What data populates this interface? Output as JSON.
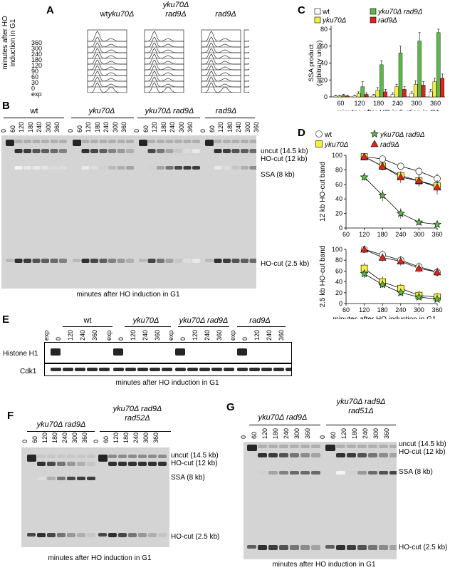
{
  "panels": {
    "A": {
      "letter": "A",
      "strains": [
        "wt",
        "yku70Δ",
        "yku70Δ\nrad9Δ",
        "rad9Δ"
      ],
      "ylabel": "minutes after HO induction in G1",
      "row_labels": [
        "360",
        "300",
        "240",
        "180",
        "120",
        "90",
        "60",
        "30",
        "0",
        "exp"
      ]
    },
    "B": {
      "letter": "B",
      "strains": [
        "wt",
        "yku70Δ",
        "yku70Δ rad9Δ",
        "rad9Δ"
      ],
      "lanes": [
        "0",
        "60",
        "120",
        "180",
        "240",
        "300",
        "360"
      ],
      "bands": [
        "uncut (14.5 kb)",
        "HO-cut (12 kb)",
        "SSA (8 kb)",
        "HO-cut (2.5 kb)"
      ],
      "xlabel": "minutes after HO induction in G1"
    },
    "C": {
      "letter": "C",
      "legend": [
        "wt",
        "yku70Δ",
        "yku70Δ rad9Δ",
        "rad9Δ"
      ],
      "ylabel": "SSA product\n(arbitrary units)",
      "xlabel": "minutes after HO induction in G1"
    },
    "D": {
      "letter": "D",
      "legend": [
        "wt",
        "yku70Δ",
        "yku70Δ rad9Δ",
        "rad9Δ"
      ],
      "ylabel_top": "12 kb HO-cut band",
      "ylabel_bottom": "2.5 kb HO-cut band",
      "xlabel": "minutes after HO induction in G1"
    },
    "E": {
      "letter": "E",
      "strains": [
        "wt",
        "yku70Δ",
        "yku70Δ rad9Δ",
        "rad9Δ"
      ],
      "lanes": [
        "exp",
        "0",
        "120",
        "240",
        "360"
      ],
      "rows": [
        "Histone H1",
        "Cdk1"
      ],
      "xlabel": "minutes after HO induction in G1"
    },
    "F": {
      "letter": "F",
      "strains": [
        "yku70Δ rad9Δ",
        "yku70Δ rad9Δ\nrad52Δ"
      ],
      "lanes": [
        "0",
        "60",
        "120",
        "180",
        "240",
        "300",
        "360"
      ],
      "bands": [
        "uncut (14.5 kb)",
        "HO-cut (12 kb)",
        "SSA (8 kb)",
        "HO-cut (2.5 kb)"
      ],
      "xlabel": "minutes after HO induction in G1"
    },
    "G": {
      "letter": "G",
      "strains": [
        "yku70Δ rad9Δ",
        "yku70Δ rad9Δ\nrad51Δ"
      ],
      "lanes": [
        "0",
        "60",
        "120",
        "180",
        "240",
        "300",
        "360"
      ],
      "bands": [
        "uncut (14.5 kb)",
        "HO-cut (12 kb)",
        "SSA (8 kb)",
        "HO-cut (2.5 kb)"
      ],
      "xlabel": "minutes after HO induction in G1"
    }
  },
  "chart_data": [
    {
      "type": "bar",
      "panel": "C",
      "categories": [
        "60",
        "120",
        "180",
        "240",
        "300",
        "360"
      ],
      "ylim": [
        0,
        80
      ],
      "yticks": [
        "0",
        "20",
        "40",
        "60",
        "80"
      ],
      "ylabel": "SSA product\n(arbitrary units)",
      "xlabel": "minutes after HO induction in G1",
      "series": [
        {
          "name": "wt",
          "color": "#ffffff",
          "values": [
            1,
            1,
            2,
            3,
            4,
            6
          ],
          "err": [
            1,
            1,
            1,
            2,
            2,
            3
          ]
        },
        {
          "name": "yku70Δ",
          "color": "#f5f03c",
          "values": [
            1,
            4,
            8,
            12,
            15,
            18
          ],
          "err": [
            1,
            2,
            3,
            3,
            4,
            4
          ]
        },
        {
          "name": "yku70Δ rad9Δ",
          "color": "#5cb848",
          "values": [
            2,
            12,
            38,
            52,
            66,
            76
          ],
          "err": [
            1,
            6,
            5,
            8,
            10,
            4
          ]
        },
        {
          "name": "rad9Δ",
          "color": "#e0241c",
          "values": [
            1,
            3,
            6,
            9,
            14,
            22
          ],
          "err": [
            1,
            2,
            3,
            3,
            4,
            5
          ]
        }
      ]
    },
    {
      "type": "line",
      "panel": "D-top",
      "x": [
        120,
        180,
        240,
        300,
        360
      ],
      "xlim": [
        60,
        360
      ],
      "ylim": [
        0,
        100
      ],
      "xticks": [
        "60",
        "120",
        "180",
        "240",
        "300",
        "360"
      ],
      "yticks": [
        "0",
        "20",
        "40",
        "60",
        "80",
        "100"
      ],
      "ylabel": "12 kb HO-cut band",
      "series": [
        {
          "name": "wt",
          "marker": "circle",
          "color": "#ffffff",
          "values": [
            98,
            95,
            85,
            78,
            68
          ],
          "err": [
            3,
            4,
            5,
            6,
            7
          ]
        },
        {
          "name": "yku70Δ",
          "marker": "square",
          "color": "#f5f03c",
          "values": [
            98,
            85,
            72,
            65,
            58
          ],
          "err": [
            3,
            5,
            6,
            7,
            8
          ]
        },
        {
          "name": "yku70Δ rad9Δ",
          "marker": "star",
          "color": "#5cb848",
          "values": [
            70,
            45,
            20,
            8,
            5
          ],
          "err": [
            5,
            8,
            7,
            4,
            3
          ]
        },
        {
          "name": "rad9Δ",
          "marker": "triangle",
          "color": "#e0241c",
          "values": [
            98,
            85,
            70,
            65,
            56
          ],
          "err": [
            3,
            6,
            8,
            8,
            10
          ]
        }
      ]
    },
    {
      "type": "line",
      "panel": "D-bottom",
      "x": [
        120,
        180,
        240,
        300,
        360
      ],
      "xlim": [
        60,
        360
      ],
      "ylim": [
        0,
        100
      ],
      "xticks": [
        "60",
        "120",
        "180",
        "240",
        "300",
        "360"
      ],
      "yticks": [
        "0",
        "20",
        "40",
        "60",
        "80",
        "100"
      ],
      "ylabel": "2.5 kb HO-cut band",
      "xlabel": "minutes after HO induction in G1",
      "series": [
        {
          "name": "wt",
          "marker": "circle",
          "color": "#ffffff",
          "values": [
            100,
            90,
            80,
            68,
            58
          ],
          "err": [
            3,
            8,
            8,
            8,
            8
          ]
        },
        {
          "name": "yku70Δ",
          "marker": "square",
          "color": "#f5f03c",
          "values": [
            65,
            40,
            28,
            15,
            12
          ],
          "err": [
            10,
            10,
            8,
            8,
            8
          ]
        },
        {
          "name": "yku70Δ rad9Δ",
          "marker": "star",
          "color": "#5cb848",
          "values": [
            55,
            35,
            20,
            12,
            8
          ],
          "err": [
            8,
            6,
            5,
            5,
            4
          ]
        },
        {
          "name": "rad9Δ",
          "marker": "triangle",
          "color": "#e0241c",
          "values": [
            100,
            85,
            78,
            65,
            58
          ],
          "err": [
            3,
            8,
            8,
            8,
            8
          ]
        }
      ]
    }
  ]
}
